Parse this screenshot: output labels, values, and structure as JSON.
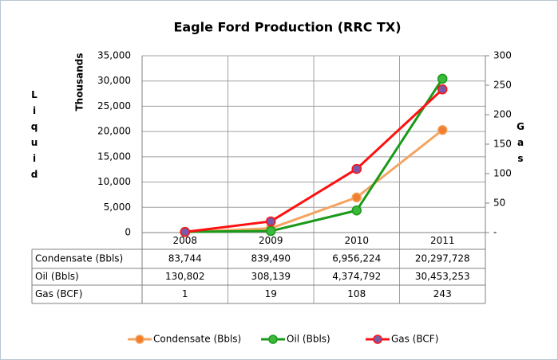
{
  "chart_data": {
    "type": "line",
    "title": "Eagle Ford Production (RRC TX)",
    "y_label": "Liquid",
    "y_unit_label": "Thousands",
    "y2_label": "Gas",
    "categories": [
      "2008",
      "2009",
      "2010",
      "2011"
    ],
    "series": [
      {
        "name": "Condensate (Bbls)",
        "color": "#f4a460",
        "marker_color": "#f08030",
        "values": [
          83.744,
          839.49,
          6956.224,
          20297.728
        ],
        "value_labels": [
          "83,744",
          "839,490",
          "6,956,224",
          "20,297,728"
        ]
      },
      {
        "name": "Oil (Bbls)",
        "color": "#1a9a1a",
        "marker_color": "#3cb83c",
        "values": [
          130.802,
          308.139,
          4374.792,
          30453.253
        ],
        "value_labels": [
          "130,802",
          "308,139",
          "4,374,792",
          "30,453,253"
        ]
      },
      {
        "name": "Gas (BCF)",
        "color": "#ff1010",
        "marker_color": "#7a5aa8",
        "axis": "y2",
        "values": [
          1,
          19,
          108,
          243
        ]
      }
    ],
    "ylim": [
      0,
      35000
    ],
    "yticks": [
      0,
      {
        "value": 5000,
        "label": "5,000"
      },
      {
        "value": 10000,
        "label": "10,000"
      },
      {
        "value": 15000,
        "label": "15,000"
      },
      {
        "value": 20000,
        "label": "20,000"
      },
      {
        "value": 25000,
        "label": "25,000"
      },
      {
        "value": 30000,
        "label": "30,000"
      },
      {
        "value": 35000,
        "label": "35,000"
      }
    ],
    "y2lim": [
      0,
      300
    ],
    "y2ticks": [
      {
        "value": 0,
        "label": "-"
      },
      50,
      100,
      150,
      200,
      250,
      300
    ],
    "grid": true,
    "legend": "bottom"
  }
}
